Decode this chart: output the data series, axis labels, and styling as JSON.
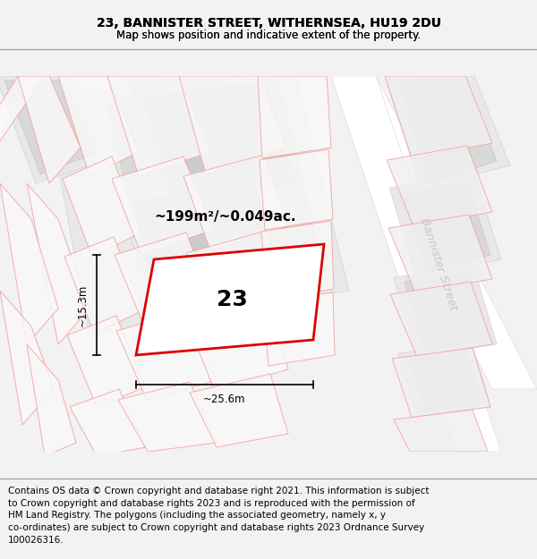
{
  "title": "23, BANNISTER STREET, WITHERNSEA, HU19 2DU",
  "subtitle": "Map shows position and indicative extent of the property.",
  "footer_lines": [
    "Contains OS data © Crown copyright and database right 2021. This information is subject",
    "to Crown copyright and database rights 2023 and is reproduced with the permission of",
    "HM Land Registry. The polygons (including the associated geometry, namely x, y",
    "co-ordinates) are subject to Crown copyright and database rights 2023 Ordnance Survey",
    "100026316."
  ],
  "area_label": "~199m²/~0.049ac.",
  "property_number": "23",
  "width_label": "~25.6m",
  "height_label": "~15.3m",
  "street_label": "Bannister Street",
  "bg_color": "#f2f2f2",
  "map_bg": "#f5f5f5",
  "road_color": "#ffffff",
  "plot_fill": "#ffffff",
  "plot_edge": "#dd0000",
  "plot_linewidth": 2.0,
  "pink_color": "#f5a0a0",
  "gray_dark": "#cccccc",
  "gray_mid": "#d8d8d8",
  "gray_light": "#e8e8e8",
  "title_fontsize": 10,
  "subtitle_fontsize": 8.5,
  "footer_fontsize": 7.5,
  "area_fontsize": 11,
  "number_fontsize": 18,
  "dim_fontsize": 8.5,
  "street_fontsize": 9.5
}
